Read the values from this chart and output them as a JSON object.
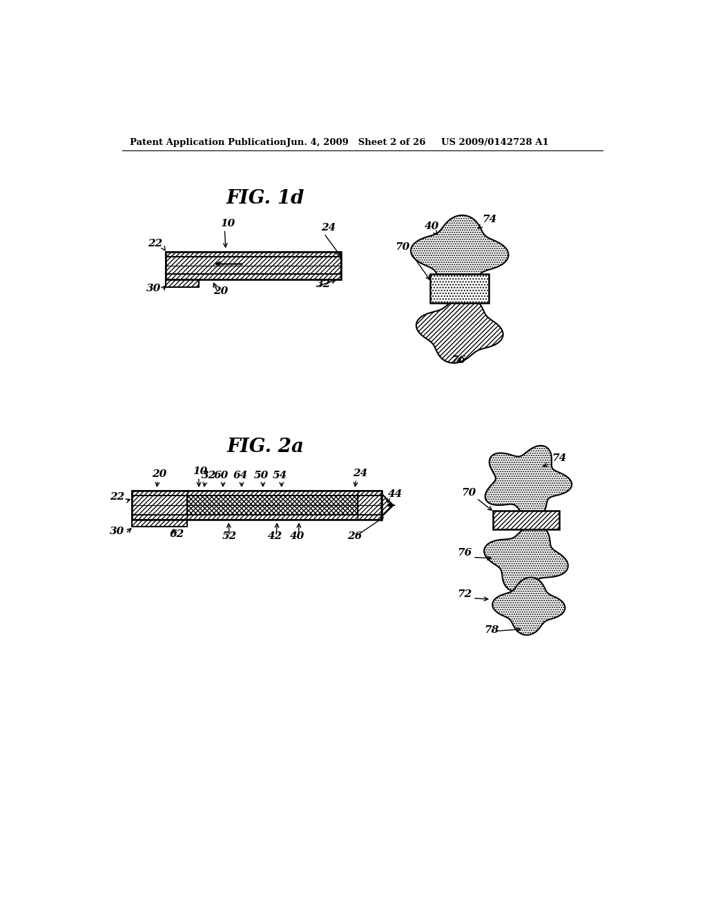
{
  "background_color": "#ffffff",
  "header_left": "Patent Application Publication",
  "header_mid": "Jun. 4, 2009   Sheet 2 of 26",
  "header_right": "US 2009/0142728 A1",
  "fig1d_title": "FIG. 1d",
  "fig2a_title": "FIG. 2a"
}
